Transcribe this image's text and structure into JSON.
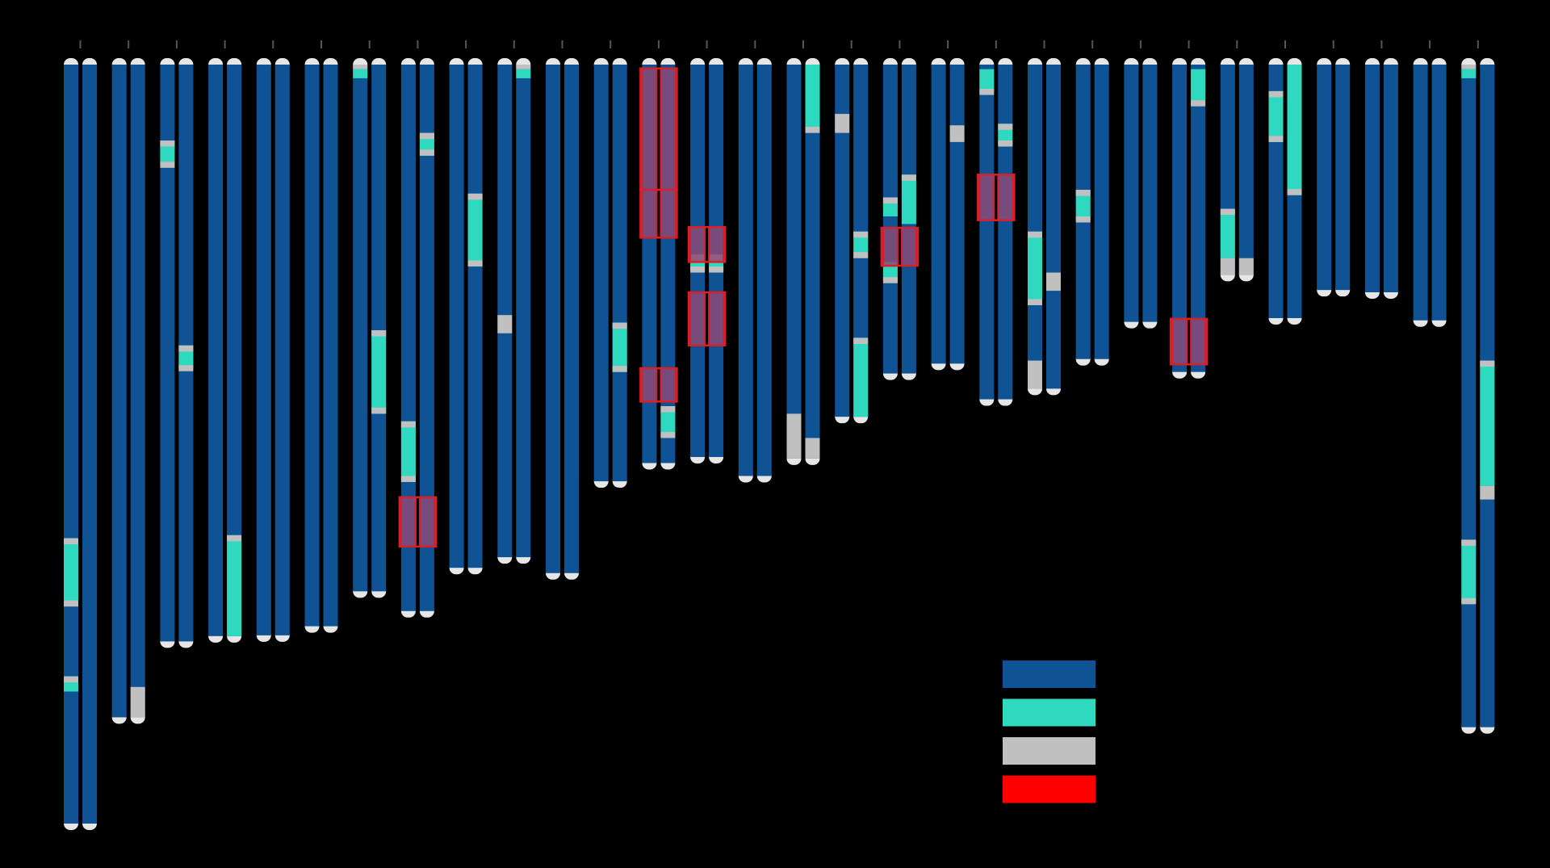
{
  "colors": {
    "background": "#000000",
    "main_segment": "#0f5394",
    "teal_segment": "#2fd9c0",
    "gray_segment": "#c0c0c0",
    "cap": "#e6e6e6",
    "highlight_fill": "#8a4a78",
    "highlight_border": "#d81f2a",
    "tick": "#555555"
  },
  "scale": {
    "min": 0,
    "max": 100
  },
  "legend": {
    "items": [
      {
        "color": "#0f5394",
        "label": ""
      },
      {
        "color": "#2fd9c0",
        "label": ""
      },
      {
        "color": "#c0c0c0",
        "label": ""
      },
      {
        "color": "#ff0000",
        "label": ""
      }
    ]
  },
  "pairs": [
    {
      "label": "",
      "strands": [
        {
          "length": 100,
          "segments": [
            {
              "start": 62.4,
              "end": 71.0,
              "type": "teal"
            },
            {
              "start": 62.4,
              "end": 63.2,
              "type": "gray"
            },
            {
              "start": 70.6,
              "end": 71.4,
              "type": "gray"
            },
            {
              "start": 80.6,
              "end": 82.6,
              "type": "teal"
            },
            {
              "start": 80.6,
              "end": 81.4,
              "type": "gray"
            }
          ]
        },
        {
          "length": 100,
          "segments": []
        }
      ],
      "highlights": []
    },
    {
      "label": "",
      "strands": [
        {
          "length": 86.0,
          "segments": []
        },
        {
          "length": 86.0,
          "segments": [
            {
              "start": 82.0,
              "end": 86.0,
              "type": "gray"
            }
          ]
        }
      ],
      "highlights": []
    },
    {
      "label": "",
      "strands": [
        {
          "length": 76.0,
          "segments": [
            {
              "start": 10.0,
              "end": 13.0,
              "type": "teal"
            },
            {
              "start": 10.0,
              "end": 10.8,
              "type": "gray"
            },
            {
              "start": 12.8,
              "end": 13.6,
              "type": "gray"
            }
          ]
        },
        {
          "length": 76.0,
          "segments": [
            {
              "start": 37.0,
              "end": 40.0,
              "type": "teal"
            },
            {
              "start": 37.0,
              "end": 37.8,
              "type": "gray"
            },
            {
              "start": 39.6,
              "end": 40.4,
              "type": "gray"
            }
          ]
        }
      ],
      "highlights": []
    },
    {
      "label": "",
      "strands": [
        {
          "length": 75.3,
          "segments": []
        },
        {
          "length": 75.3,
          "segments": [
            {
              "start": 62.0,
              "end": 75.3,
              "type": "teal"
            },
            {
              "start": 62.0,
              "end": 62.8,
              "type": "gray"
            }
          ]
        }
      ],
      "highlights": []
    },
    {
      "label": "",
      "strands": [
        {
          "length": 75.2,
          "segments": []
        },
        {
          "length": 75.2,
          "segments": []
        }
      ],
      "highlights": []
    },
    {
      "label": "",
      "strands": [
        {
          "length": 74.0,
          "segments": []
        },
        {
          "length": 74.0,
          "segments": []
        }
      ],
      "highlights": []
    },
    {
      "label": "",
      "strands": [
        {
          "length": 69.4,
          "segments": [
            {
              "start": 0.6,
              "end": 1.8,
              "type": "teal"
            },
            {
              "start": 0.0,
              "end": 0.6,
              "type": "gray"
            }
          ]
        },
        {
          "length": 69.4,
          "segments": [
            {
              "start": 35.0,
              "end": 46.0,
              "type": "teal"
            },
            {
              "start": 35.0,
              "end": 35.8,
              "type": "gray"
            },
            {
              "start": 45.2,
              "end": 46.0,
              "type": "gray"
            }
          ]
        }
      ],
      "highlights": []
    },
    {
      "label": "",
      "strands": [
        {
          "length": 72.0,
          "segments": [
            {
              "start": 47.0,
              "end": 55.0,
              "type": "teal"
            },
            {
              "start": 47.0,
              "end": 47.8,
              "type": "gray"
            },
            {
              "start": 54.2,
              "end": 55.0,
              "type": "gray"
            }
          ]
        },
        {
          "length": 72.0,
          "segments": [
            {
              "start": 9.0,
              "end": 12.0,
              "type": "teal"
            },
            {
              "start": 9.0,
              "end": 9.8,
              "type": "gray"
            },
            {
              "start": 11.2,
              "end": 12.0,
              "type": "gray"
            }
          ]
        }
      ],
      "highlights": [
        {
          "start": 57.0,
          "end": 63.5
        }
      ]
    },
    {
      "label": "",
      "strands": [
        {
          "length": 66.3,
          "segments": []
        },
        {
          "length": 66.3,
          "segments": [
            {
              "start": 17.0,
              "end": 26.5,
              "type": "teal"
            },
            {
              "start": 17.0,
              "end": 17.8,
              "type": "gray"
            },
            {
              "start": 25.8,
              "end": 26.6,
              "type": "gray"
            }
          ]
        }
      ],
      "highlights": []
    },
    {
      "label": "",
      "strands": [
        {
          "length": 64.9,
          "segments": [
            {
              "start": 33.0,
              "end": 35.4,
              "type": "gray"
            }
          ]
        },
        {
          "length": 64.9,
          "segments": [
            {
              "start": 0.6,
              "end": 1.8,
              "type": "teal"
            },
            {
              "start": 0.0,
              "end": 0.6,
              "type": "gray"
            }
          ]
        }
      ],
      "highlights": []
    },
    {
      "label": "",
      "strands": [
        {
          "length": 67.0,
          "segments": []
        },
        {
          "length": 67.0,
          "segments": []
        }
      ],
      "highlights": []
    },
    {
      "label": "",
      "strands": [
        {
          "length": 54.9,
          "segments": []
        },
        {
          "length": 54.9,
          "segments": [
            {
              "start": 34.0,
              "end": 40.5,
              "type": "teal"
            },
            {
              "start": 34.0,
              "end": 34.8,
              "type": "gray"
            },
            {
              "start": 39.7,
              "end": 40.5,
              "type": "gray"
            }
          ]
        }
      ],
      "highlights": []
    },
    {
      "label": "",
      "strands": [
        {
          "length": 52.5,
          "segments": []
        },
        {
          "length": 52.5,
          "segments": [
            {
              "start": 45.0,
              "end": 49.0,
              "type": "teal"
            },
            {
              "start": 45.0,
              "end": 45.8,
              "type": "gray"
            },
            {
              "start": 48.4,
              "end": 49.2,
              "type": "gray"
            }
          ]
        }
      ],
      "highlights": [
        {
          "start": 0.5,
          "end": 16.5
        },
        {
          "start": 16.5,
          "end": 22.8
        },
        {
          "start": 40.0,
          "end": 44.4
        }
      ]
    },
    {
      "label": "",
      "strands": [
        {
          "length": 51.7,
          "segments": [
            {
              "start": 25.0,
              "end": 27.2,
              "type": "teal"
            },
            {
              "start": 25.0,
              "end": 25.8,
              "type": "gray"
            },
            {
              "start": 26.6,
              "end": 27.4,
              "type": "gray"
            }
          ]
        },
        {
          "length": 51.7,
          "segments": [
            {
              "start": 25.0,
              "end": 27.2,
              "type": "teal"
            },
            {
              "start": 25.0,
              "end": 25.8,
              "type": "gray"
            },
            {
              "start": 26.6,
              "end": 27.4,
              "type": "gray"
            }
          ]
        }
      ],
      "highlights": [
        {
          "start": 21.4,
          "end": 26.0
        },
        {
          "start": 30.0,
          "end": 37.0
        }
      ]
    },
    {
      "label": "",
      "strands": [
        {
          "length": 54.2,
          "segments": []
        },
        {
          "length": 54.2,
          "segments": []
        }
      ],
      "highlights": []
    },
    {
      "label": "",
      "strands": [
        {
          "length": 51.9,
          "segments": [
            {
              "start": 46.0,
              "end": 51.9,
              "type": "gray"
            }
          ]
        },
        {
          "length": 51.9,
          "segments": [
            {
              "start": 0.0,
              "end": 9.0,
              "type": "teal"
            },
            {
              "start": 8.2,
              "end": 9.0,
              "type": "gray"
            },
            {
              "start": 49.2,
              "end": 51.9,
              "type": "gray"
            }
          ]
        }
      ],
      "highlights": []
    },
    {
      "label": "",
      "strands": [
        {
          "length": 46.4,
          "segments": [
            {
              "start": 6.5,
              "end": 9.0,
              "type": "gray"
            }
          ]
        },
        {
          "length": 46.4,
          "segments": [
            {
              "start": 22.0,
              "end": 25.5,
              "type": "teal"
            },
            {
              "start": 22.0,
              "end": 22.8,
              "type": "gray"
            },
            {
              "start": 24.7,
              "end": 25.5,
              "type": "gray"
            },
            {
              "start": 36.0,
              "end": 46.4,
              "type": "teal"
            },
            {
              "start": 36.0,
              "end": 36.8,
              "type": "gray"
            }
          ]
        }
      ],
      "highlights": []
    },
    {
      "label": "",
      "strands": [
        {
          "length": 40.7,
          "segments": [
            {
              "start": 17.5,
              "end": 20.0,
              "type": "teal"
            },
            {
              "start": 17.5,
              "end": 18.3,
              "type": "gray"
            },
            {
              "start": 26.0,
              "end": 28.5,
              "type": "teal"
            },
            {
              "start": 28.0,
              "end": 28.8,
              "type": "gray"
            }
          ]
        },
        {
          "length": 40.7,
          "segments": [
            {
              "start": 14.5,
              "end": 21.0,
              "type": "teal"
            },
            {
              "start": 14.5,
              "end": 15.3,
              "type": "gray"
            }
          ]
        }
      ],
      "highlights": [
        {
          "start": 21.5,
          "end": 26.5
        }
      ]
    },
    {
      "label": "",
      "strands": [
        {
          "length": 39.4,
          "segments": []
        },
        {
          "length": 39.4,
          "segments": [
            {
              "start": 8.0,
              "end": 10.2,
              "type": "gray"
            }
          ]
        }
      ],
      "highlights": []
    },
    {
      "label": "",
      "strands": [
        {
          "length": 44.1,
          "segments": [
            {
              "start": 0.6,
              "end": 3.6,
              "type": "teal"
            },
            {
              "start": 3.2,
              "end": 4.0,
              "type": "gray"
            }
          ]
        },
        {
          "length": 44.1,
          "segments": [
            {
              "start": 7.8,
              "end": 10.6,
              "type": "teal"
            },
            {
              "start": 7.8,
              "end": 8.6,
              "type": "gray"
            },
            {
              "start": 10.0,
              "end": 10.8,
              "type": "gray"
            }
          ]
        }
      ],
      "highlights": [
        {
          "start": 14.5,
          "end": 20.5
        }
      ]
    },
    {
      "label": "",
      "strands": [
        {
          "length": 42.7,
          "segments": [
            {
              "start": 22.0,
              "end": 31.5,
              "type": "teal"
            },
            {
              "start": 22.0,
              "end": 22.8,
              "type": "gray"
            },
            {
              "start": 30.9,
              "end": 31.7,
              "type": "gray"
            },
            {
              "start": 39.0,
              "end": 42.7,
              "type": "gray"
            }
          ]
        },
        {
          "length": 42.7,
          "segments": [
            {
              "start": 27.4,
              "end": 29.8,
              "type": "gray"
            }
          ]
        }
      ],
      "highlights": []
    },
    {
      "label": "",
      "strands": [
        {
          "length": 38.8,
          "segments": [
            {
              "start": 16.5,
              "end": 20.5,
              "type": "teal"
            },
            {
              "start": 16.5,
              "end": 17.3,
              "type": "gray"
            },
            {
              "start": 20.0,
              "end": 20.8,
              "type": "gray"
            }
          ]
        },
        {
          "length": 38.8,
          "segments": []
        }
      ],
      "highlights": []
    },
    {
      "label": "",
      "strands": [
        {
          "length": 33.9,
          "segments": []
        },
        {
          "length": 33.9,
          "segments": []
        }
      ],
      "highlights": []
    },
    {
      "label": "",
      "strands": [
        {
          "length": 40.5,
          "segments": []
        },
        {
          "length": 40.5,
          "segments": [
            {
              "start": 0.6,
              "end": 5.3,
              "type": "teal"
            },
            {
              "start": 4.7,
              "end": 5.5,
              "type": "gray"
            }
          ]
        }
      ],
      "highlights": [
        {
          "start": 33.5,
          "end": 39.5
        }
      ]
    },
    {
      "label": "",
      "strands": [
        {
          "length": 27.7,
          "segments": [
            {
              "start": 19.0,
              "end": 25.5,
              "type": "teal"
            },
            {
              "start": 19.0,
              "end": 19.8,
              "type": "gray"
            },
            {
              "start": 25.5,
              "end": 27.7,
              "type": "gray"
            }
          ]
        },
        {
          "length": 27.7,
          "segments": [
            {
              "start": 25.5,
              "end": 27.7,
              "type": "gray"
            }
          ]
        }
      ],
      "highlights": []
    },
    {
      "label": "",
      "strands": [
        {
          "length": 33.4,
          "segments": [
            {
              "start": 3.5,
              "end": 10.2,
              "type": "teal"
            },
            {
              "start": 3.5,
              "end": 4.3,
              "type": "gray"
            },
            {
              "start": 9.4,
              "end": 10.2,
              "type": "gray"
            }
          ]
        },
        {
          "length": 33.4,
          "segments": [
            {
              "start": 0.0,
              "end": 17.2,
              "type": "teal"
            },
            {
              "start": 16.4,
              "end": 17.2,
              "type": "gray"
            }
          ]
        }
      ],
      "highlights": []
    },
    {
      "label": "",
      "strands": [
        {
          "length": 29.7,
          "segments": []
        },
        {
          "length": 29.7,
          "segments": []
        }
      ],
      "highlights": []
    },
    {
      "label": "",
      "strands": [
        {
          "length": 30.0,
          "segments": []
        },
        {
          "length": 30.0,
          "segments": []
        }
      ],
      "highlights": []
    },
    {
      "label": "",
      "strands": [
        {
          "length": 33.7,
          "segments": []
        },
        {
          "length": 33.7,
          "segments": []
        }
      ],
      "highlights": []
    },
    {
      "label": "",
      "strands": [
        {
          "length": 87.3,
          "segments": [
            {
              "start": 0.6,
              "end": 1.8,
              "type": "teal"
            },
            {
              "start": 0.0,
              "end": 0.6,
              "type": "gray"
            },
            {
              "start": 62.6,
              "end": 71.0,
              "type": "teal"
            },
            {
              "start": 62.6,
              "end": 63.4,
              "type": "gray"
            },
            {
              "start": 70.3,
              "end": 71.1,
              "type": "gray"
            }
          ]
        },
        {
          "length": 87.3,
          "segments": [
            {
              "start": 39.0,
              "end": 55.5,
              "type": "teal"
            },
            {
              "start": 39.0,
              "end": 39.8,
              "type": "gray"
            },
            {
              "start": 55.5,
              "end": 57.3,
              "type": "gray"
            }
          ]
        }
      ],
      "highlights": []
    }
  ]
}
